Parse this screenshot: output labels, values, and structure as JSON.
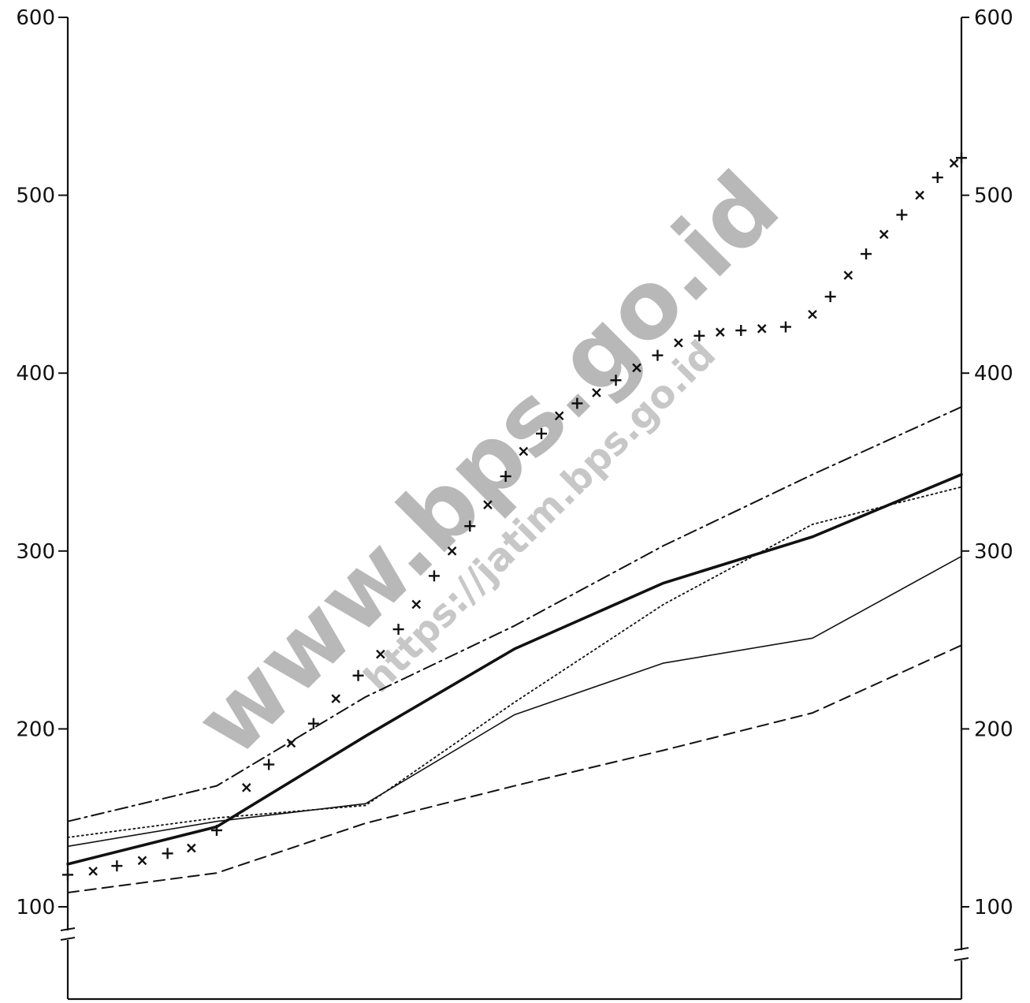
{
  "watermark": {
    "main": "www.bps.go.id",
    "url": "https://jatim.bps.go.id"
  },
  "chart_data": {
    "type": "line",
    "title": "",
    "xlabel": "",
    "ylabel": "",
    "ylim": [
      100,
      600
    ],
    "yticks": [
      100,
      200,
      300,
      400,
      500,
      600
    ],
    "y_axis_break": true,
    "x": [
      0,
      1,
      2,
      3,
      4,
      5,
      6
    ],
    "grid": false,
    "series": [
      {
        "style": "dashed",
        "color": "#111111",
        "values": [
          108,
          119,
          147,
          168,
          188,
          209,
          247
        ]
      },
      {
        "style": "solid-thin",
        "color": "#111111",
        "values": [
          134,
          148,
          158,
          208,
          237,
          251,
          297
        ]
      },
      {
        "style": "dotted",
        "color": "#111111",
        "values": [
          139,
          150,
          157,
          215,
          270,
          315,
          336
        ]
      },
      {
        "style": "solid-thick",
        "color": "#111111",
        "values": [
          124,
          145,
          196,
          245,
          282,
          308,
          343
        ]
      },
      {
        "style": "dash-dot",
        "color": "#111111",
        "values": [
          148,
          168,
          218,
          258,
          303,
          343,
          381
        ]
      }
    ],
    "marker_series": {
      "style": "cross-markers",
      "color": "#111111",
      "x": [
        0,
        0.17,
        0.33,
        0.5,
        0.67,
        0.83,
        1.0,
        1.2,
        1.35,
        1.5,
        1.65,
        1.8,
        1.95,
        2.1,
        2.22,
        2.34,
        2.46,
        2.58,
        2.7,
        2.82,
        2.94,
        3.06,
        3.18,
        3.3,
        3.42,
        3.55,
        3.68,
        3.82,
        3.96,
        4.1,
        4.24,
        4.38,
        4.52,
        4.66,
        4.82,
        5.0,
        5.12,
        5.24,
        5.36,
        5.48,
        5.6,
        5.72,
        5.84,
        5.95,
        6.0
      ],
      "values": [
        118,
        120,
        123,
        126,
        130,
        133,
        143,
        167,
        180,
        192,
        203,
        217,
        230,
        242,
        256,
        270,
        286,
        300,
        314,
        326,
        342,
        356,
        366,
        376,
        383,
        389,
        396,
        403,
        410,
        417,
        421,
        423,
        424,
        425,
        426,
        433,
        443,
        455,
        467,
        478,
        489,
        500,
        510,
        518,
        521
      ]
    }
  }
}
